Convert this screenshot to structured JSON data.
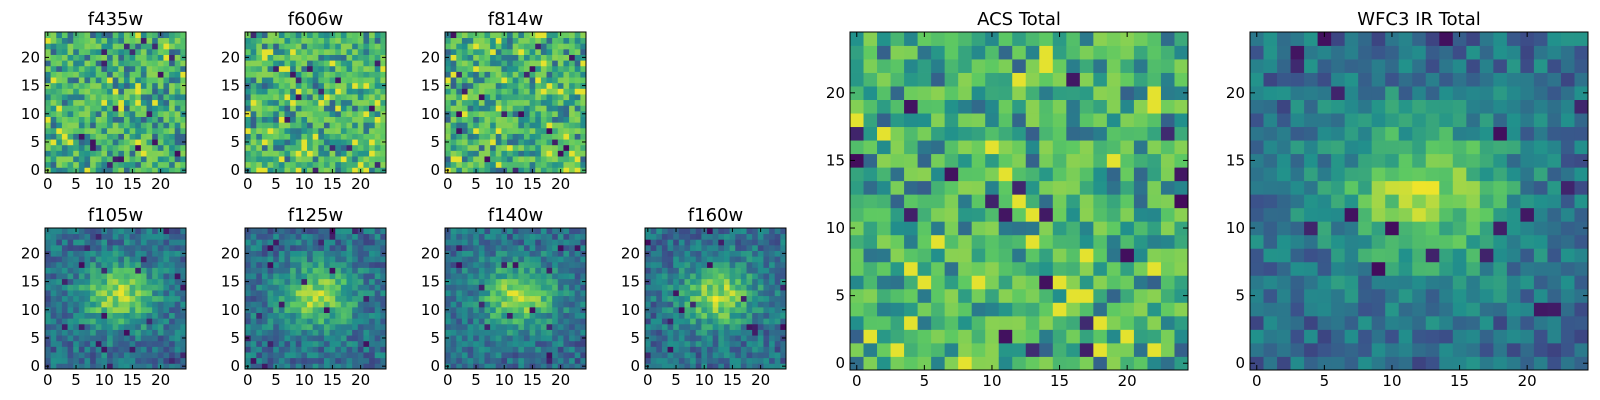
{
  "chart_data": {
    "type": "heatmap",
    "colormap": "viridis",
    "colormap_stops": [
      "#440154",
      "#3b528b",
      "#21918c",
      "#5ec962",
      "#fde725"
    ],
    "grid_size": 25,
    "panels": [
      {
        "id": "f435w",
        "title": "f435w",
        "xticks": [
          0,
          5,
          10,
          15,
          20
        ],
        "yticks": [
          0,
          5,
          10,
          15,
          20
        ],
        "pattern": "noise",
        "seed": 11
      },
      {
        "id": "f606w",
        "title": "f606w",
        "xticks": [
          0,
          5,
          10,
          15,
          20
        ],
        "yticks": [
          0,
          5,
          10,
          15,
          20
        ],
        "pattern": "noise",
        "seed": 23
      },
      {
        "id": "f814w",
        "title": "f814w",
        "xticks": [
          0,
          5,
          10,
          15,
          20
        ],
        "yticks": [
          0,
          5,
          10,
          15,
          20
        ],
        "pattern": "noise",
        "seed": 37
      },
      {
        "id": "f105w",
        "title": "f105w",
        "xticks": [
          0,
          5,
          10,
          15,
          20
        ],
        "yticks": [
          0,
          5,
          10,
          15,
          20
        ],
        "pattern": "blob",
        "seed": 41
      },
      {
        "id": "f125w",
        "title": "f125w",
        "xticks": [
          0,
          5,
          10,
          15,
          20
        ],
        "yticks": [
          0,
          5,
          10,
          15,
          20
        ],
        "pattern": "blob",
        "seed": 53
      },
      {
        "id": "f140w",
        "title": "f140w",
        "xticks": [
          0,
          5,
          10,
          15,
          20
        ],
        "yticks": [
          0,
          5,
          10,
          15,
          20
        ],
        "pattern": "blob",
        "seed": 67
      },
      {
        "id": "f160w",
        "title": "f160w",
        "xticks": [
          0,
          5,
          10,
          15,
          20
        ],
        "yticks": [
          0,
          5,
          10,
          15,
          20
        ],
        "pattern": "blob",
        "seed": 79
      },
      {
        "id": "acs_total",
        "title": "ACS Total",
        "xticks": [
          0,
          5,
          10,
          15,
          20
        ],
        "yticks": [
          0,
          5,
          10,
          15,
          20
        ],
        "pattern": "noise",
        "seed": 97
      },
      {
        "id": "wfc3_total",
        "title": "WFC3 IR Total",
        "xticks": [
          0,
          5,
          10,
          15,
          20
        ],
        "yticks": [
          0,
          5,
          10,
          15,
          20
        ],
        "pattern": "blob",
        "seed": 113
      }
    ]
  }
}
